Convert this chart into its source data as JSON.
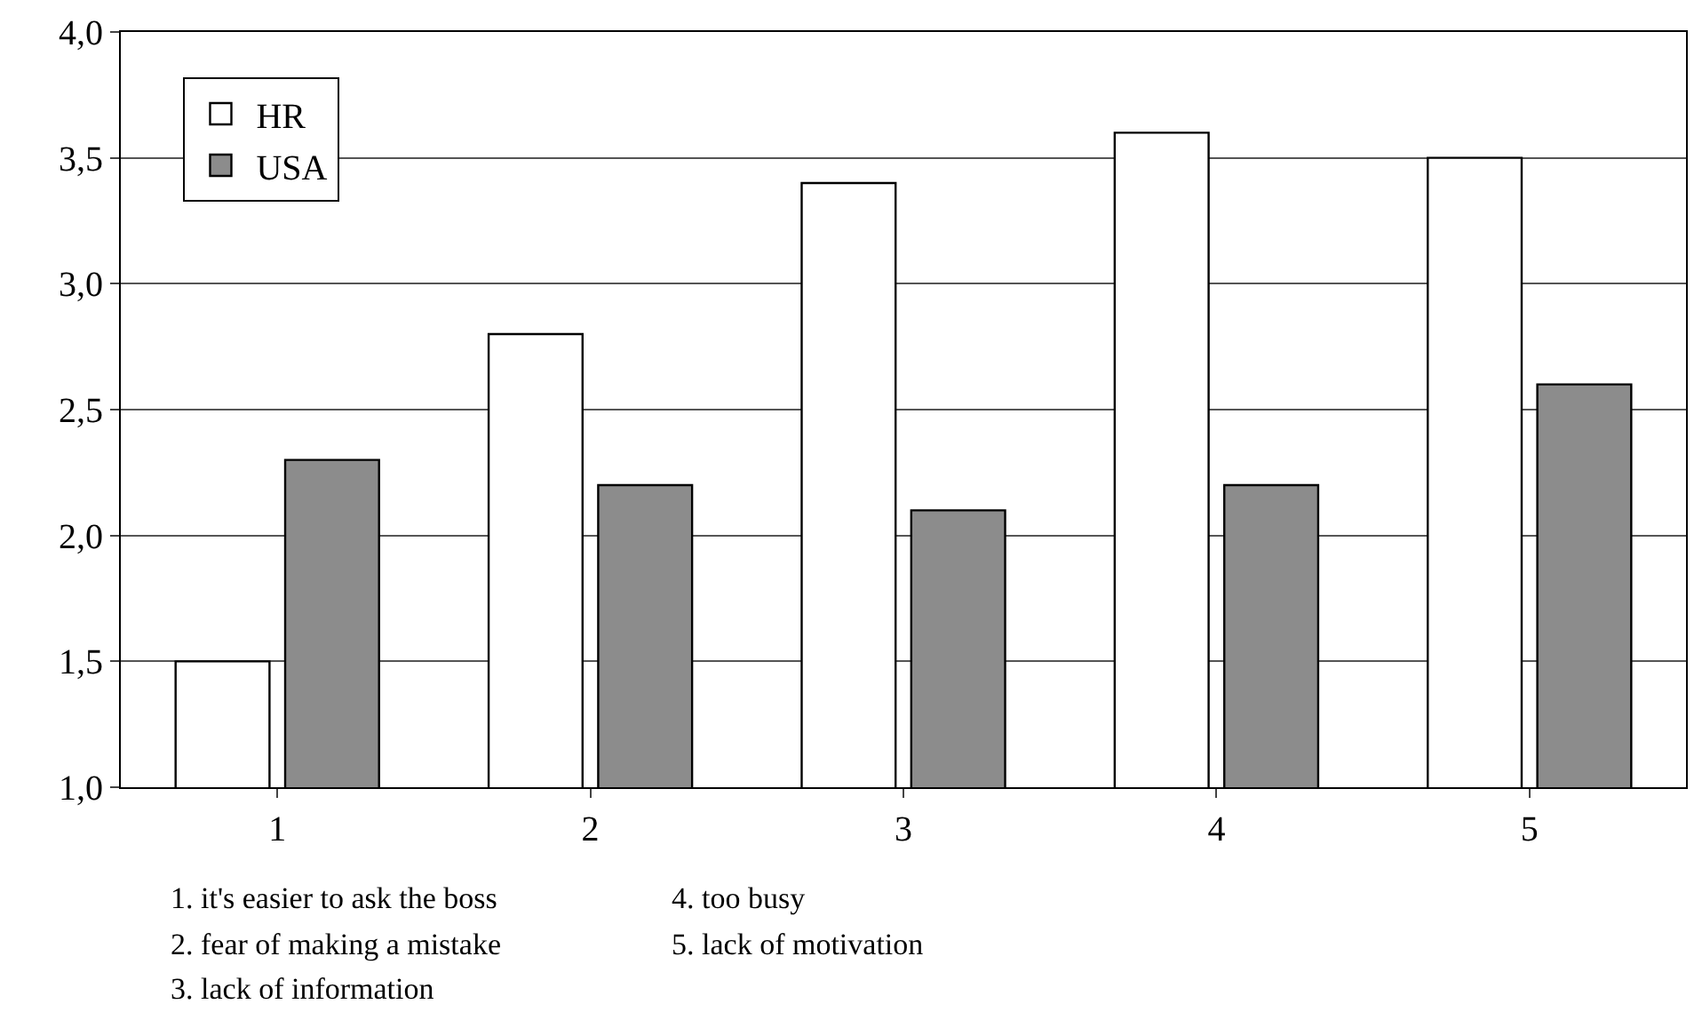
{
  "chart_data": {
    "type": "bar",
    "categories": [
      "1",
      "2",
      "3",
      "4",
      "5"
    ],
    "series": [
      {
        "name": "HR",
        "color": "#ffffff",
        "values": [
          1.5,
          2.8,
          3.4,
          3.6,
          3.5
        ]
      },
      {
        "name": "USA",
        "color": "#8c8c8c",
        "values": [
          2.3,
          2.2,
          2.1,
          2.2,
          2.6
        ]
      }
    ],
    "ylim": [
      1.0,
      4.0
    ],
    "yticks": [
      {
        "value": 1.0,
        "label": "1,0"
      },
      {
        "value": 1.5,
        "label": "1,5"
      },
      {
        "value": 2.0,
        "label": "2,0"
      },
      {
        "value": 2.5,
        "label": "2,5"
      },
      {
        "value": 3.0,
        "label": "3,0"
      },
      {
        "value": 3.5,
        "label": "3,5"
      },
      {
        "value": 4.0,
        "label": "4,0"
      }
    ],
    "grid": "y",
    "legend": "top left",
    "annotations": [
      "1. it's easier to ask the boss",
      "2. fear of making a mistake",
      "3. lack of information",
      "4. too busy",
      "5. lack of motivation"
    ]
  }
}
